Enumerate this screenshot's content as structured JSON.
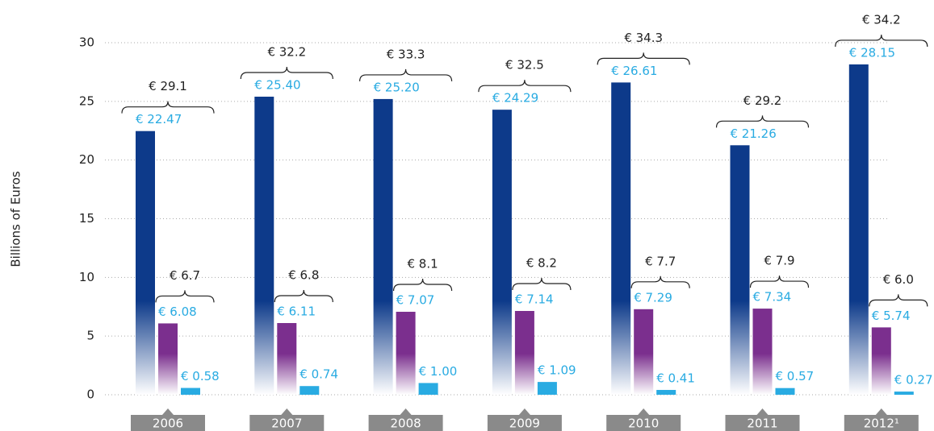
{
  "chart_data": {
    "type": "bar",
    "y_label": "Billions of Euros",
    "categories": [
      "2006",
      "2007",
      "2008",
      "2009",
      "2010",
      "2011",
      "2012¹"
    ],
    "series": [
      {
        "color": "#0d3a8a",
        "values": [
          22.47,
          25.4,
          25.2,
          24.29,
          26.61,
          21.26,
          28.15
        ],
        "value_labels": [
          "€ 22.47",
          "€ 25.40",
          "€ 25.20",
          "€ 24.29",
          "€ 26.61",
          "€ 21.26",
          "€ 28.15"
        ]
      },
      {
        "color": "#7b2f8e",
        "values": [
          6.08,
          6.11,
          7.07,
          7.14,
          7.29,
          7.34,
          5.74
        ],
        "value_labels": [
          "€ 6.08",
          "€ 6.11",
          "€ 7.07",
          "€ 7.14",
          "€ 7.29",
          "€ 7.34",
          "€ 5.74"
        ]
      },
      {
        "color": "#29abe2",
        "values": [
          0.58,
          0.74,
          1.0,
          1.09,
          0.41,
          0.57,
          0.27
        ],
        "value_labels": [
          "€ 0.58",
          "€ 0.74",
          "€ 1.00",
          "€ 1.09",
          "€ 0.41",
          "€ 0.57",
          "€ 0.27"
        ]
      }
    ],
    "totals": [
      29.1,
      32.2,
      33.3,
      32.5,
      34.3,
      29.2,
      34.2
    ],
    "totals_labels": [
      "€ 29.1",
      "€ 32.2",
      "€ 33.3",
      "€ 32.5",
      "€ 34.3",
      "€ 29.2",
      "€ 34.2"
    ],
    "subtotals": [
      6.7,
      6.8,
      8.1,
      8.2,
      7.7,
      7.9,
      6.0
    ],
    "subtotals_labels": [
      "€ 6.7",
      "€ 6.8",
      "€ 8.1",
      "€ 8.2",
      "€ 7.7",
      "€ 7.9",
      "€ 6.0"
    ],
    "ylim": [
      0,
      30
    ],
    "yticks": [
      0,
      5,
      10,
      15,
      20,
      25,
      30
    ],
    "grid": true
  }
}
